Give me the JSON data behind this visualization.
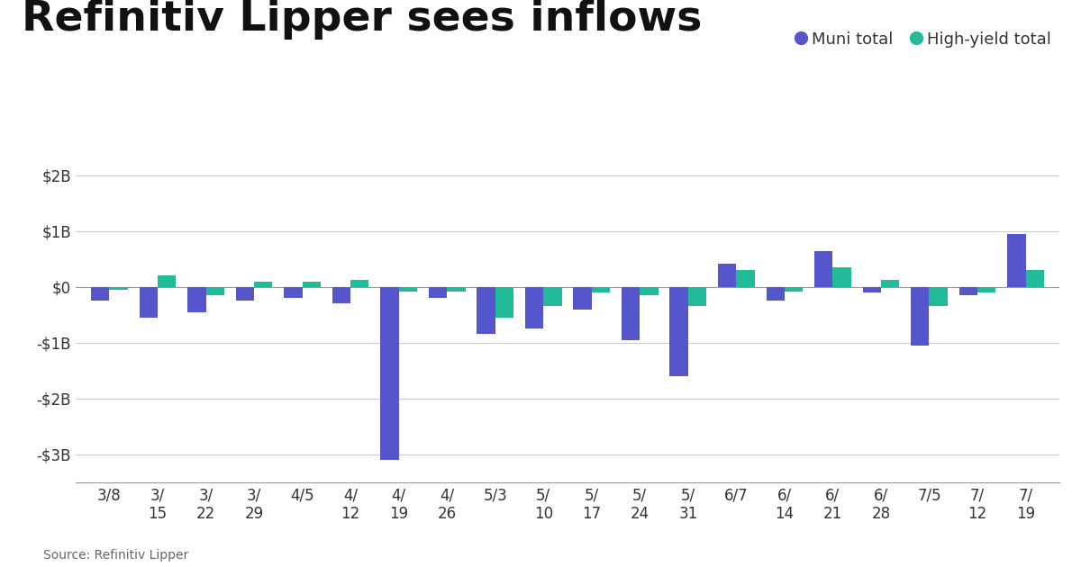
{
  "title": "Refinitiv Lipper sees inflows",
  "source": "Source: Refinitiv Lipper",
  "legend_muni": "Muni total",
  "legend_hy": "High-yield total",
  "muni_color": "#5555cc",
  "hy_color": "#22bb99",
  "background_color": "#ffffff",
  "muni_values": [
    -0.25,
    -0.55,
    -0.45,
    -0.25,
    -0.2,
    -0.3,
    -3.1,
    -0.2,
    -0.85,
    -0.75,
    -0.4,
    -0.95,
    -1.6,
    0.42,
    -0.25,
    0.65,
    -0.1,
    -1.05,
    -0.15,
    0.95
  ],
  "hy_values": [
    -0.05,
    0.2,
    -0.15,
    0.1,
    0.1,
    0.12,
    -0.08,
    -0.08,
    -0.55,
    -0.35,
    -0.1,
    -0.15,
    -0.35,
    0.3,
    -0.08,
    0.35,
    0.12,
    -0.35,
    -0.1,
    0.3
  ],
  "tick_labels": [
    "3/8",
    "3/\n15",
    "3/\n22",
    "3/\n29",
    "4/5",
    "4/\n12",
    "4/\n19",
    "4/\n26",
    "5/3",
    "5/\n10",
    "5/\n17",
    "5/\n24",
    "5/\n31",
    "6/7",
    "6/\n14",
    "6/\n21",
    "6/\n28",
    "7/5",
    "7/\n12",
    "7/\n19"
  ],
  "ylim": [
    -3.5,
    2.3
  ],
  "yticks": [
    -3,
    -2,
    -1,
    0,
    1,
    2
  ],
  "ytick_labels": [
    "-$3B",
    "-$2B",
    "-$1B",
    "$0",
    "$1B",
    "$2B"
  ],
  "title_fontsize": 34,
  "tick_fontsize": 12,
  "source_fontsize": 10,
  "bar_width": 0.38,
  "figsize": [
    12.0,
    6.3
  ]
}
